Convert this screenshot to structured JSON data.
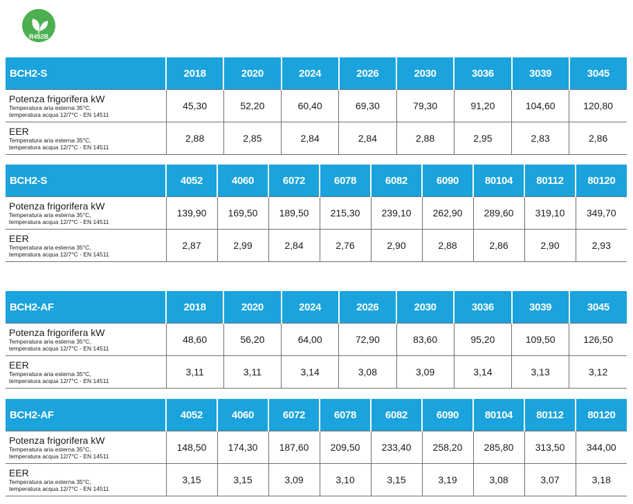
{
  "badge": {
    "icon": "leaf-icon",
    "text": "R452B",
    "color": "#4caf50"
  },
  "row_labels": {
    "potenza": "Potenza frigorifera  kW",
    "eer": "EER",
    "cond1": "Temperatura aria esterna 35°C,",
    "cond2": "temperatura acqua 12/7°C - EN 14511"
  },
  "colors": {
    "header": "#1aa3dc"
  },
  "tables": [
    {
      "series": "BCH2-S",
      "models": [
        "2018",
        "2020",
        "2024",
        "2026",
        "2030",
        "3036",
        "3039",
        "3045"
      ],
      "potenza": [
        "45,30",
        "52,20",
        "60,40",
        "69,30",
        "79,30",
        "91,20",
        "104,60",
        "120,80"
      ],
      "eer": [
        "2,88",
        "2,85",
        "2,84",
        "2,84",
        "2,88",
        "2,95",
        "2,83",
        "2,86"
      ]
    },
    {
      "series": "BCH2-S",
      "models": [
        "4052",
        "4060",
        "6072",
        "6078",
        "6082",
        "6090",
        "80104",
        "80112",
        "80120"
      ],
      "potenza": [
        "139,90",
        "169,50",
        "189,50",
        "215,30",
        "239,10",
        "262,90",
        "289,60",
        "319,10",
        "349,70"
      ],
      "eer": [
        "2,87",
        "2,99",
        "2,84",
        "2,76",
        "2,90",
        "2,88",
        "2,86",
        "2,90",
        "2,93"
      ]
    },
    {
      "series": "BCH2-AF",
      "models": [
        "2018",
        "2020",
        "2024",
        "2026",
        "2030",
        "3036",
        "3039",
        "3045"
      ],
      "potenza": [
        "48,60",
        "56,20",
        "64,00",
        "72,90",
        "83,60",
        "95,20",
        "109,50",
        "126,50"
      ],
      "eer": [
        "3,11",
        "3,11",
        "3,14",
        "3,08",
        "3,09",
        "3,14",
        "3,13",
        "3,12"
      ]
    },
    {
      "series": "BCH2-AF",
      "models": [
        "4052",
        "4060",
        "6072",
        "6078",
        "6082",
        "6090",
        "80104",
        "80112",
        "80120"
      ],
      "potenza": [
        "148,50",
        "174,30",
        "187,60",
        "209,50",
        "233,40",
        "258,20",
        "285,80",
        "313,50",
        "344,00"
      ],
      "eer": [
        "3,15",
        "3,15",
        "3,09",
        "3,10",
        "3,15",
        "3,19",
        "3,08",
        "3,07",
        "3,18"
      ]
    }
  ]
}
